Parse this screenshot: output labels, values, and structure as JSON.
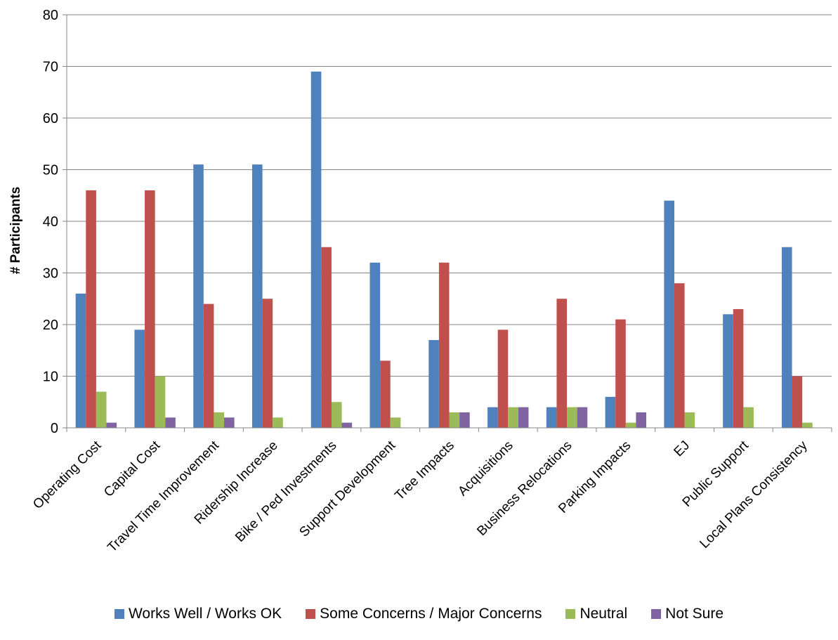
{
  "chart_data": {
    "type": "bar",
    "ylabel": "# Participants",
    "xlabel": "",
    "title": "",
    "ylim": [
      0,
      80
    ],
    "yticks": [
      0,
      10,
      20,
      30,
      40,
      50,
      60,
      70,
      80
    ],
    "grid": true,
    "legend_position": "bottom",
    "categories": [
      "Operating Cost",
      "Capital Cost",
      "Travel Time Improvement",
      "Ridership Increase",
      "Bike / Ped Investments",
      "Support Development",
      "Tree Impacts",
      "Acquisitions",
      "Business Relocations",
      "Parking Impacts",
      "EJ",
      "Public Support",
      "Local Plans Consistency"
    ],
    "series": [
      {
        "name": "Works Well / Works OK",
        "color": "#4F81BD",
        "values": [
          26,
          19,
          51,
          51,
          69,
          32,
          17,
          4,
          4,
          6,
          44,
          22,
          35
        ]
      },
      {
        "name": "Some Concerns / Major Concerns",
        "color": "#C0504D",
        "values": [
          46,
          46,
          24,
          25,
          35,
          13,
          32,
          19,
          25,
          21,
          28,
          23,
          10
        ]
      },
      {
        "name": "Neutral",
        "color": "#9BBB59",
        "values": [
          7,
          10,
          3,
          2,
          5,
          2,
          3,
          4,
          4,
          1,
          3,
          4,
          1
        ]
      },
      {
        "name": "Not Sure",
        "color": "#8064A2",
        "values": [
          1,
          2,
          2,
          0,
          1,
          0,
          3,
          4,
          4,
          3,
          0,
          0,
          0
        ]
      }
    ]
  }
}
